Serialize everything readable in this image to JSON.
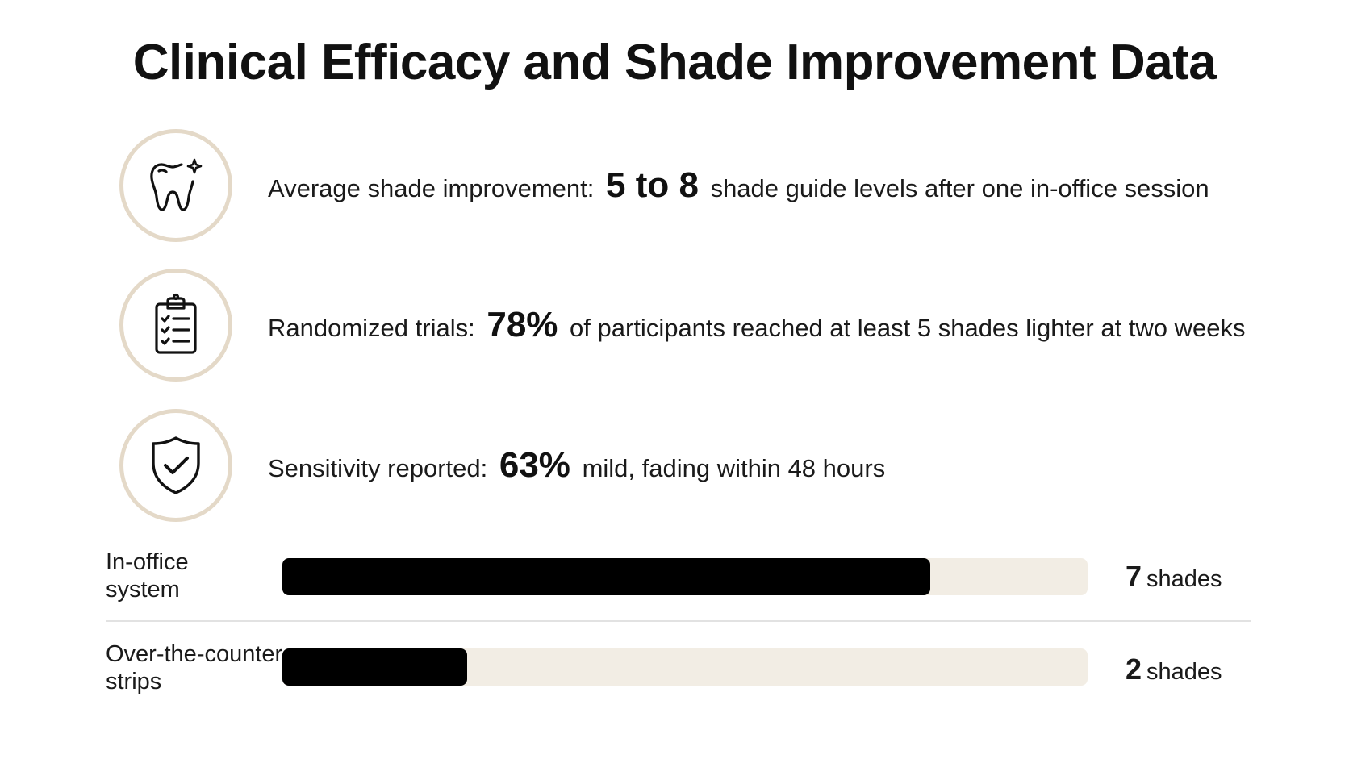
{
  "page": {
    "title": "Clinical Efficacy and Shade Improvement Data"
  },
  "stats": [
    {
      "icon": "tooth-sparkle-icon",
      "prefix": "Average shade improvement:",
      "highlight": "5 to 8",
      "suffix": "shade guide levels after one in-office session"
    },
    {
      "icon": "clipboard-checklist-icon",
      "prefix": "Randomized trials:",
      "highlight": "78%",
      "suffix": "of participants reached at least 5 shades lighter at two weeks"
    },
    {
      "icon": "shield-check-icon",
      "prefix": "Sensitivity reported:",
      "highlight": "63%",
      "suffix": "mild, fading within 48 hours"
    }
  ],
  "colors": {
    "bar": "#000000",
    "track": "#f2ede4",
    "icon_ring": "#e4d9c8"
  },
  "chart_data": {
    "type": "bar",
    "orientation": "horizontal",
    "categories": [
      "In-office system",
      "Over-the-counter strips"
    ],
    "category_lines": [
      [
        "In-office",
        "system"
      ],
      [
        "Over-the-counter",
        "strips"
      ]
    ],
    "values": [
      7,
      2
    ],
    "value_labels": [
      "7",
      "2"
    ],
    "unit_label": "shades",
    "xlim": [
      0,
      8.7
    ],
    "grid": false
  }
}
